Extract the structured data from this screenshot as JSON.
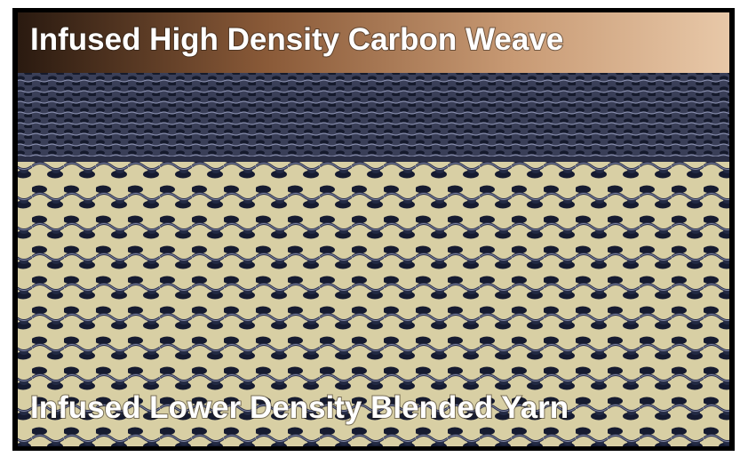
{
  "labels": {
    "top": "Infused High Density Carbon Weave",
    "bottom": "Infused Lower Density Blended Yarn"
  }
}
